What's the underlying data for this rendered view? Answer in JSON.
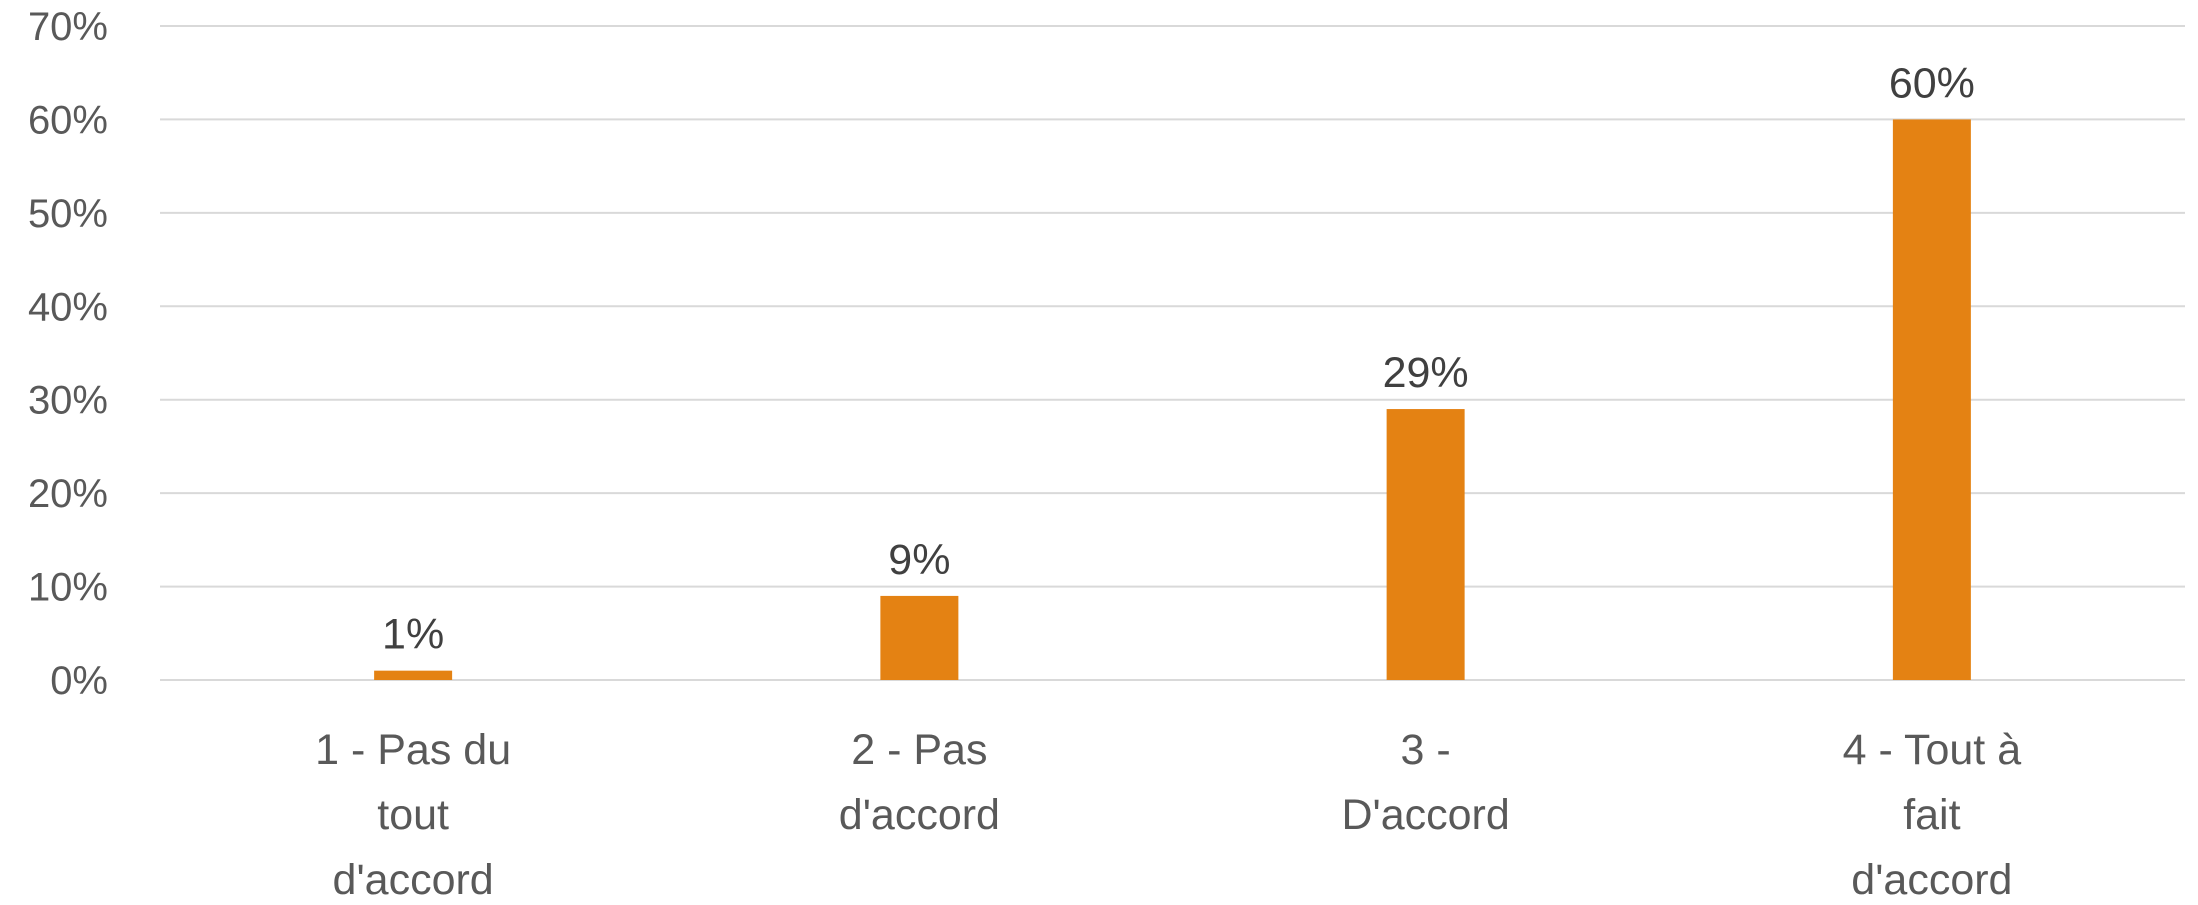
{
  "chart_data": {
    "type": "bar",
    "categories": [
      "1 - Pas du tout d'accord",
      "2 - Pas d'accord",
      "3 - D'accord",
      "4 - Tout à fait d'accord"
    ],
    "category_label_lines": [
      [
        "1 - Pas du",
        "tout",
        "d'accord"
      ],
      [
        "2 - Pas",
        "d'accord"
      ],
      [
        "3 -",
        "D'accord"
      ],
      [
        "4 - Tout à",
        "fait",
        "d'accord"
      ]
    ],
    "values": [
      1,
      9,
      29,
      60
    ],
    "data_labels": [
      "1%",
      "9%",
      "29%",
      "60%"
    ],
    "ylim": [
      0,
      70
    ],
    "yticks": [
      0,
      10,
      20,
      30,
      40,
      50,
      60,
      70
    ],
    "ytick_labels": [
      "0%",
      "10%",
      "20%",
      "30%",
      "40%",
      "50%",
      "60%",
      "70%"
    ],
    "title": "",
    "xlabel": "",
    "ylabel": "",
    "grid": true,
    "legend": "none",
    "colors": {
      "bar": "#E48213",
      "grid": "#D9D9D9",
      "tick_text": "#595959",
      "data_label_text": "#404040"
    }
  }
}
